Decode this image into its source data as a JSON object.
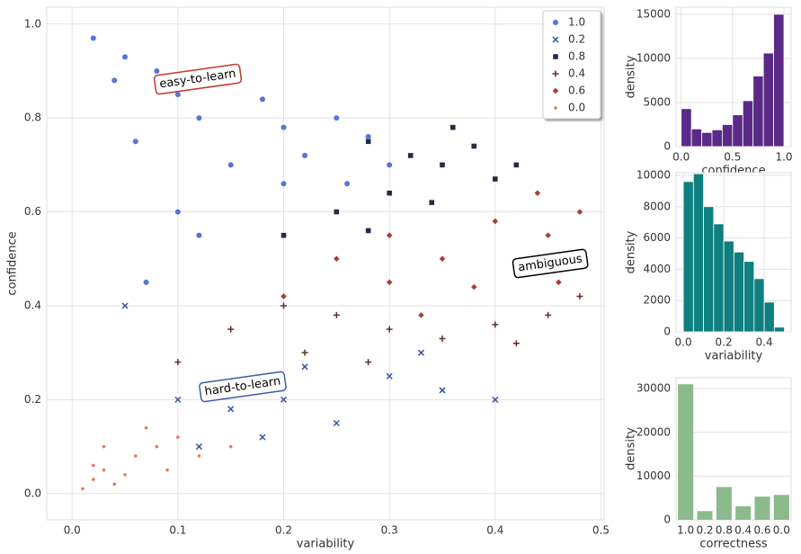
{
  "chart_data": [
    {
      "type": "scatter",
      "xlabel": "variability",
      "ylabel": "confidence",
      "xlim": [
        -0.024,
        0.503
      ],
      "ylim": [
        -0.056,
        1.036
      ],
      "xticks": [
        {
          "value": 0,
          "label": "0.0"
        },
        0.1,
        0.2,
        0.3,
        0.4,
        0.5
      ],
      "yticks": [
        {
          "value": 0,
          "label": "0.0"
        },
        0.2,
        0.4,
        0.6,
        0.8,
        {
          "value": 1,
          "label": "1.0"
        }
      ],
      "grid": true,
      "legend": "upper right",
      "series": [
        {
          "name": "1.0",
          "color": "#5575d9",
          "marker": "circle",
          "x": [
            0.02,
            0.05,
            0.08,
            0.1,
            0.12,
            0.15,
            0.18,
            0.2,
            0.22,
            0.25,
            0.28,
            0.3,
            0.15,
            0.1,
            0.07,
            0.12,
            0.2,
            0.06,
            0.04,
            0.26
          ],
          "values": [
            0.97,
            0.93,
            0.9,
            0.85,
            0.8,
            0.88,
            0.84,
            0.78,
            0.72,
            0.8,
            0.76,
            0.7,
            0.7,
            0.6,
            0.45,
            0.55,
            0.66,
            0.75,
            0.88,
            0.66
          ]
        },
        {
          "name": "0.2",
          "color": "#3b4fa8",
          "marker": "x",
          "x": [
            0.1,
            0.15,
            0.2,
            0.25,
            0.3,
            0.35,
            0.4,
            0.18,
            0.22,
            0.12,
            0.05,
            0.33
          ],
          "values": [
            0.2,
            0.18,
            0.2,
            0.15,
            0.25,
            0.22,
            0.2,
            0.12,
            0.27,
            0.1,
            0.4,
            0.3
          ]
        },
        {
          "name": "0.8",
          "color": "#232c45",
          "marker": "square",
          "x": [
            0.28,
            0.32,
            0.35,
            0.38,
            0.3,
            0.34,
            0.4,
            0.25,
            0.2,
            0.36,
            0.42,
            0.28
          ],
          "values": [
            0.75,
            0.72,
            0.7,
            0.74,
            0.64,
            0.62,
            0.67,
            0.6,
            0.55,
            0.78,
            0.7,
            0.56
          ]
        },
        {
          "name": "0.4",
          "color": "#5e3327",
          "marker": "plus",
          "x": [
            0.15,
            0.2,
            0.25,
            0.3,
            0.35,
            0.4,
            0.45,
            0.48,
            0.1,
            0.28,
            0.42,
            0.22
          ],
          "values": [
            0.35,
            0.4,
            0.38,
            0.35,
            0.33,
            0.36,
            0.38,
            0.42,
            0.28,
            0.28,
            0.32,
            0.3
          ]
        },
        {
          "name": "0.6",
          "color": "#a8412f",
          "marker": "diamond",
          "x": [
            0.3,
            0.35,
            0.4,
            0.45,
            0.48,
            0.42,
            0.38,
            0.3,
            0.25,
            0.46,
            0.33,
            0.2,
            0.44
          ],
          "values": [
            0.55,
            0.5,
            0.58,
            0.55,
            0.6,
            0.48,
            0.44,
            0.45,
            0.5,
            0.45,
            0.38,
            0.42,
            0.64
          ]
        },
        {
          "name": "0.0",
          "color": "#e6735c",
          "marker": "dot",
          "x": [
            0.01,
            0.02,
            0.03,
            0.05,
            0.06,
            0.08,
            0.1,
            0.04,
            0.07,
            0.12,
            0.15,
            0.03,
            0.09,
            0.02
          ],
          "values": [
            0.01,
            0.03,
            0.05,
            0.04,
            0.08,
            0.1,
            0.12,
            0.02,
            0.14,
            0.08,
            0.1,
            0.1,
            0.05,
            0.06
          ]
        }
      ],
      "annotations": [
        {
          "text": "easy-to-learn",
          "color": "#c0392b"
        },
        {
          "text": "ambiguous",
          "color": "#000000"
        },
        {
          "text": "hard-to-learn",
          "color": "#3b5ba8"
        }
      ]
    },
    {
      "type": "histogram",
      "xlabel": "confidence",
      "ylabel": "density",
      "color": "#5b2a86",
      "bins": [
        0,
        0.1,
        0.2,
        0.3,
        0.4,
        0.5,
        0.6,
        0.7,
        0.8,
        0.9,
        1.0
      ],
      "values": [
        4300,
        2000,
        1600,
        1900,
        2500,
        3600,
        5200,
        8000,
        10600,
        15000
      ],
      "xlim": [
        -0.05,
        1.07
      ],
      "ylim": [
        0,
        15800
      ],
      "xticks": [
        {
          "value": 0,
          "label": "0.0"
        },
        0.5,
        {
          "value": 1,
          "label": "1.0"
        }
      ],
      "yticks": [
        0,
        5000,
        10000,
        15000
      ],
      "grid": true
    },
    {
      "type": "histogram",
      "xlabel": "variability",
      "ylabel": "density",
      "color": "#0f7f7f",
      "bins": [
        0,
        0.05,
        0.1,
        0.15,
        0.2,
        0.25,
        0.3,
        0.35,
        0.4,
        0.45,
        0.5
      ],
      "values": [
        9600,
        10100,
        8000,
        6900,
        5800,
        5100,
        4500,
        3400,
        1900,
        300
      ],
      "xlim": [
        -0.036,
        0.533
      ],
      "ylim": [
        0,
        10170
      ],
      "xticks": [
        {
          "value": 0,
          "label": "0.0"
        },
        0.2,
        0.4
      ],
      "yticks": [
        0,
        2000,
        4000,
        6000,
        8000,
        10000
      ],
      "grid": true
    },
    {
      "type": "bar",
      "xlabel": "correctness",
      "ylabel": "density",
      "color": "#8cba8c",
      "categories": [
        "1.0",
        "0.2",
        "0.8",
        "0.4",
        "0.6",
        "0.0"
      ],
      "values": [
        31000,
        2000,
        7500,
        3100,
        5300,
        5700
      ],
      "ylim": [
        0,
        32500
      ],
      "yticks": [
        0,
        10000,
        20000,
        30000
      ],
      "grid": true
    }
  ]
}
